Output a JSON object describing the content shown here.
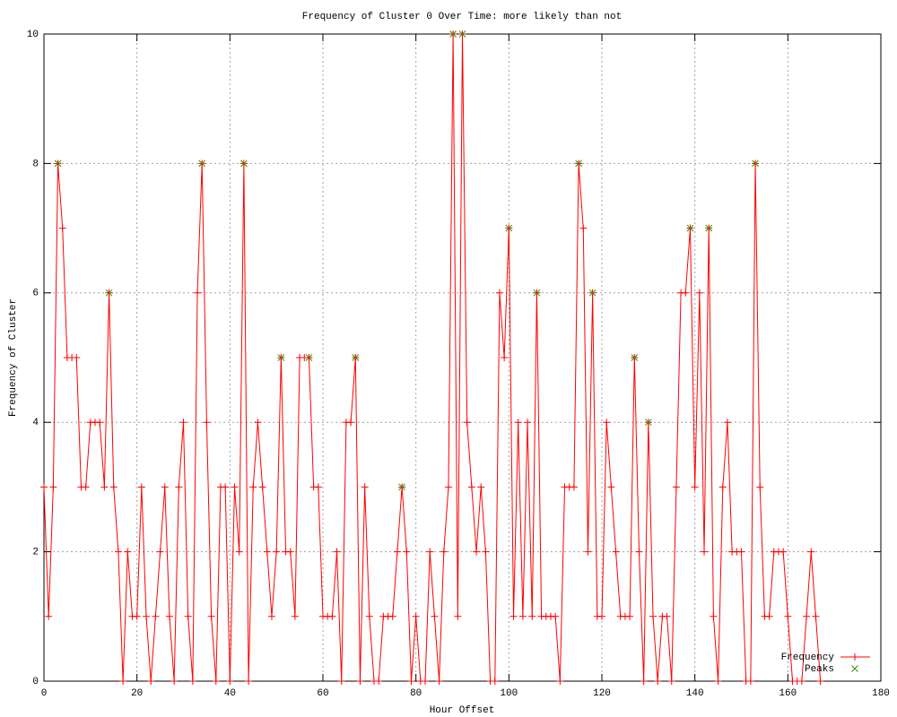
{
  "chart_data": {
    "type": "line",
    "title": "Frequency of Cluster 0 Over Time: more likely than not",
    "x_label": "Hour Offset",
    "y_label": "Frequency of Cluster",
    "xlim": [
      0,
      180
    ],
    "ylim": [
      0,
      10
    ],
    "xticks": [
      0,
      20,
      40,
      60,
      80,
      100,
      120,
      140,
      160,
      180
    ],
    "yticks": [
      0,
      2,
      4,
      6,
      8,
      10
    ],
    "grid": true,
    "legend": "bottom-right",
    "series": [
      {
        "name": "Frequency",
        "color": "#ff0000",
        "marker": "+",
        "x": [
          0,
          1,
          2,
          3,
          4,
          5,
          6,
          7,
          8,
          9,
          10,
          11,
          12,
          13,
          14,
          15,
          16,
          17,
          18,
          19,
          20,
          21,
          22,
          23,
          24,
          25,
          26,
          27,
          28,
          29,
          30,
          31,
          32,
          33,
          34,
          35,
          36,
          37,
          38,
          39,
          40,
          41,
          42,
          43,
          44,
          45,
          46,
          47,
          48,
          49,
          50,
          51,
          52,
          53,
          54,
          55,
          56,
          57,
          58,
          59,
          60,
          61,
          62,
          63,
          64,
          65,
          66,
          67,
          68,
          69,
          70,
          71,
          72,
          73,
          74,
          75,
          76,
          77,
          78,
          79,
          80,
          81,
          82,
          83,
          84,
          85,
          86,
          87,
          88,
          89,
          90,
          91,
          92,
          93,
          94,
          95,
          96,
          97,
          98,
          99,
          100,
          101,
          102,
          103,
          104,
          105,
          106,
          107,
          108,
          109,
          110,
          111,
          112,
          113,
          114,
          115,
          116,
          117,
          118,
          119,
          120,
          121,
          122,
          123,
          124,
          125,
          126,
          127,
          128,
          129,
          130,
          131,
          132,
          133,
          134,
          135,
          136,
          137,
          138,
          139,
          140,
          141,
          142,
          143,
          144,
          145,
          146,
          147,
          148,
          149,
          150,
          151,
          152,
          153,
          154,
          155,
          156,
          157,
          158,
          159,
          160,
          161,
          162,
          163,
          164,
          165,
          166,
          167
        ],
        "values": [
          3,
          1,
          3,
          8,
          7,
          5,
          5,
          5,
          3,
          3,
          4,
          4,
          4,
          3,
          6,
          3,
          2,
          0,
          2,
          1,
          1,
          3,
          1,
          0,
          1,
          2,
          3,
          1,
          0,
          3,
          4,
          1,
          0,
          6,
          8,
          4,
          1,
          0,
          3,
          3,
          0,
          3,
          2,
          8,
          0,
          3,
          4,
          3,
          2,
          1,
          2,
          5,
          2,
          2,
          1,
          5,
          5,
          5,
          3,
          3,
          1,
          1,
          1,
          2,
          0,
          4,
          4,
          5,
          0,
          3,
          1,
          0,
          0,
          1,
          1,
          1,
          2,
          3,
          2,
          0,
          1,
          0,
          0,
          2,
          1,
          0,
          2,
          3,
          10,
          1,
          10,
          4,
          3,
          2,
          3,
          2,
          0,
          0,
          6,
          5,
          7,
          1,
          4,
          1,
          4,
          1,
          6,
          1,
          1,
          1,
          1,
          0,
          3,
          3,
          3,
          8,
          7,
          2,
          6,
          1,
          1,
          4,
          3,
          2,
          1,
          1,
          1,
          5,
          2,
          0,
          4,
          1,
          0,
          1,
          1,
          0,
          3,
          6,
          6,
          7,
          3,
          6,
          2,
          7,
          1,
          0,
          3,
          4,
          2,
          2,
          2,
          0,
          0,
          8,
          3,
          1,
          1,
          2,
          2,
          2,
          1,
          0,
          0,
          0,
          1,
          2,
          1,
          0
        ]
      },
      {
        "name": "Peaks",
        "color": "#3c8c00",
        "marker": "x",
        "x": [
          3,
          14,
          34,
          43,
          51,
          57,
          67,
          77,
          88,
          90,
          100,
          106,
          115,
          118,
          127,
          130,
          139,
          143,
          153
        ],
        "values": [
          8,
          6,
          8,
          8,
          5,
          5,
          5,
          3,
          10,
          10,
          7,
          6,
          8,
          6,
          5,
          4,
          7,
          7,
          8
        ]
      }
    ]
  }
}
